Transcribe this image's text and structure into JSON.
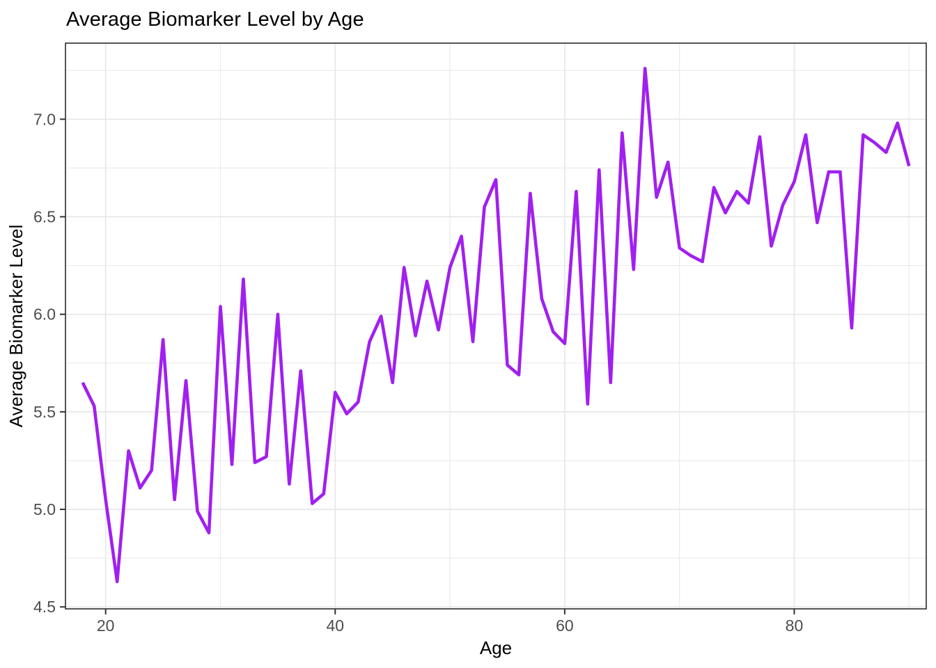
{
  "title": "Average Biomarker Level by Age",
  "chart_data": {
    "type": "line",
    "title": "Average Biomarker Level by Age",
    "xlabel": "Age",
    "ylabel": "Average Biomarker Level",
    "xlim": [
      16.5,
      91.5
    ],
    "ylim": [
      4.49,
      7.39
    ],
    "x_major_ticks": [
      20,
      40,
      60,
      80
    ],
    "x_minor_gridlines": [
      30,
      50,
      70,
      90
    ],
    "y_major_ticks": [
      4.5,
      5.0,
      5.5,
      6.0,
      6.5,
      7.0
    ],
    "y_major_tick_labels": [
      "4.5",
      "5.0",
      "5.5",
      "6.0",
      "6.5",
      "7.0"
    ],
    "y_minor_gridlines": [
      4.75,
      5.25,
      5.75,
      6.25,
      6.75,
      7.25
    ],
    "grid": true,
    "legend": "none",
    "line_color": "#A020F0",
    "background_color": "#ffffff",
    "gridline_color": "#e7e7e7",
    "panel_border_color": "#2b2b2b",
    "series": [
      {
        "name": "Average Biomarker Level",
        "x": [
          18,
          19,
          20,
          21,
          22,
          23,
          24,
          25,
          26,
          27,
          28,
          29,
          30,
          31,
          32,
          33,
          34,
          35,
          36,
          37,
          38,
          39,
          40,
          41,
          42,
          43,
          44,
          45,
          46,
          47,
          48,
          49,
          50,
          51,
          52,
          53,
          54,
          55,
          56,
          57,
          58,
          59,
          60,
          61,
          62,
          63,
          64,
          65,
          66,
          67,
          68,
          69,
          70,
          71,
          72,
          73,
          74,
          75,
          76,
          77,
          78,
          79,
          80,
          81,
          82,
          83,
          84,
          85,
          86,
          87,
          88,
          89,
          90
        ],
        "y": [
          5.65,
          5.53,
          5.05,
          4.63,
          5.3,
          5.11,
          5.2,
          5.87,
          5.05,
          5.66,
          4.99,
          4.88,
          6.04,
          5.23,
          6.18,
          5.24,
          5.27,
          6.0,
          5.13,
          5.71,
          5.03,
          5.08,
          5.6,
          5.49,
          5.55,
          5.86,
          5.99,
          5.65,
          6.24,
          5.89,
          6.17,
          5.92,
          6.24,
          6.4,
          5.86,
          6.55,
          6.69,
          5.74,
          5.69,
          6.62,
          6.08,
          5.91,
          5.85,
          6.63,
          5.54,
          6.74,
          5.65,
          6.93,
          6.23,
          7.26,
          6.6,
          6.78,
          6.34,
          6.3,
          6.27,
          6.65,
          6.52,
          6.63,
          6.57,
          6.91,
          6.35,
          6.56,
          6.68,
          6.92,
          6.47,
          6.73,
          6.73,
          5.93,
          6.92,
          6.88,
          6.83,
          6.98,
          6.76
        ]
      }
    ]
  }
}
